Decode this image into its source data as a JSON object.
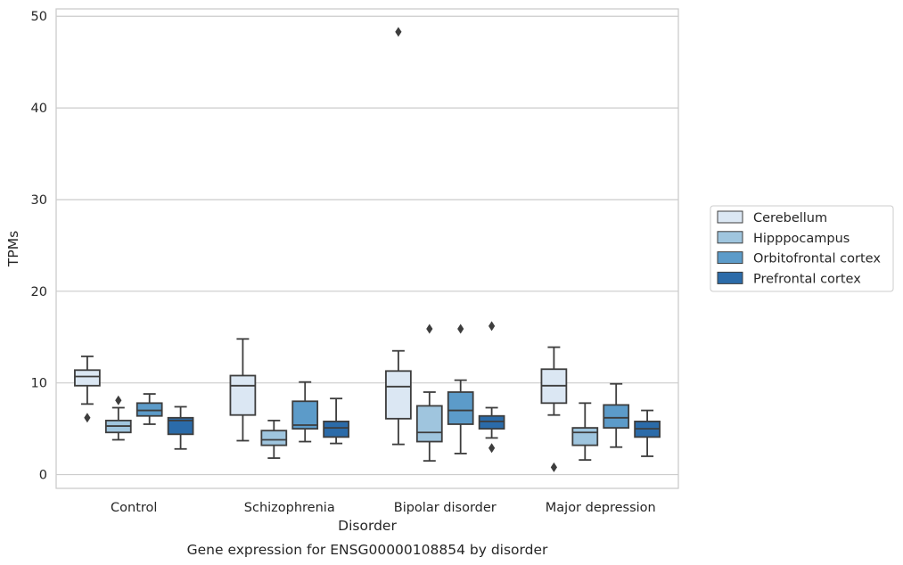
{
  "chart_data": {
    "type": "box",
    "caption": "Gene expression for ENSG00000108854 by disorder",
    "xlabel": "Disorder",
    "ylabel": "TPMs",
    "ylim": [
      -1.5,
      50.8
    ],
    "yticks": [
      0,
      10,
      20,
      30,
      40,
      50
    ],
    "grid": true,
    "legend_position": "right",
    "categories": [
      "Control",
      "Schizophrenia",
      "Bipolar disorder",
      "Major depression"
    ],
    "series": [
      {
        "name": "Cerebellum",
        "color": "#dbe7f3",
        "boxes": [
          {
            "whislo": 7.7,
            "q1": 9.7,
            "med": 10.7,
            "q3": 11.4,
            "whishi": 12.9,
            "fliers": [
              6.2
            ]
          },
          {
            "whislo": 3.7,
            "q1": 6.5,
            "med": 9.7,
            "q3": 10.8,
            "whishi": 14.8,
            "fliers": []
          },
          {
            "whislo": 3.3,
            "q1": 6.1,
            "med": 9.6,
            "q3": 11.3,
            "whishi": 13.5,
            "fliers": [
              48.3
            ]
          },
          {
            "whislo": 6.5,
            "q1": 7.8,
            "med": 9.7,
            "q3": 11.5,
            "whishi": 13.9,
            "fliers": [
              0.8
            ]
          }
        ]
      },
      {
        "name": "Hipppocampus",
        "color": "#9fc5de",
        "boxes": [
          {
            "whislo": 3.8,
            "q1": 4.6,
            "med": 5.3,
            "q3": 5.9,
            "whishi": 7.3,
            "fliers": [
              8.1
            ]
          },
          {
            "whislo": 1.8,
            "q1": 3.2,
            "med": 3.8,
            "q3": 4.8,
            "whishi": 5.9,
            "fliers": []
          },
          {
            "whislo": 1.5,
            "q1": 3.6,
            "med": 4.6,
            "q3": 7.5,
            "whishi": 9.0,
            "fliers": [
              15.9
            ]
          },
          {
            "whislo": 1.6,
            "q1": 3.2,
            "med": 4.6,
            "q3": 5.1,
            "whishi": 7.8,
            "fliers": []
          }
        ]
      },
      {
        "name": "Orbitofrontal cortex",
        "color": "#5c9bc9",
        "boxes": [
          {
            "whislo": 5.5,
            "q1": 6.4,
            "med": 7.0,
            "q3": 7.8,
            "whishi": 8.8,
            "fliers": []
          },
          {
            "whislo": 3.6,
            "q1": 5.0,
            "med": 5.4,
            "q3": 8.0,
            "whishi": 10.1,
            "fliers": []
          },
          {
            "whislo": 2.3,
            "q1": 5.5,
            "med": 7.0,
            "q3": 9.0,
            "whishi": 10.3,
            "fliers": [
              15.9
            ]
          },
          {
            "whislo": 3.0,
            "q1": 5.1,
            "med": 6.2,
            "q3": 7.6,
            "whishi": 9.9,
            "fliers": []
          }
        ]
      },
      {
        "name": "Prefrontal cortex",
        "color": "#2b6ba9",
        "boxes": [
          {
            "whislo": 2.8,
            "q1": 4.4,
            "med": 5.9,
            "q3": 6.2,
            "whishi": 7.4,
            "fliers": []
          },
          {
            "whislo": 3.4,
            "q1": 4.1,
            "med": 5.1,
            "q3": 5.8,
            "whishi": 8.3,
            "fliers": []
          },
          {
            "whislo": 4.0,
            "q1": 5.0,
            "med": 5.8,
            "q3": 6.4,
            "whishi": 7.3,
            "fliers": [
              2.9,
              16.2
            ]
          },
          {
            "whislo": 2.0,
            "q1": 4.1,
            "med": 5.0,
            "q3": 5.8,
            "whishi": 7.0,
            "fliers": []
          }
        ]
      }
    ]
  }
}
